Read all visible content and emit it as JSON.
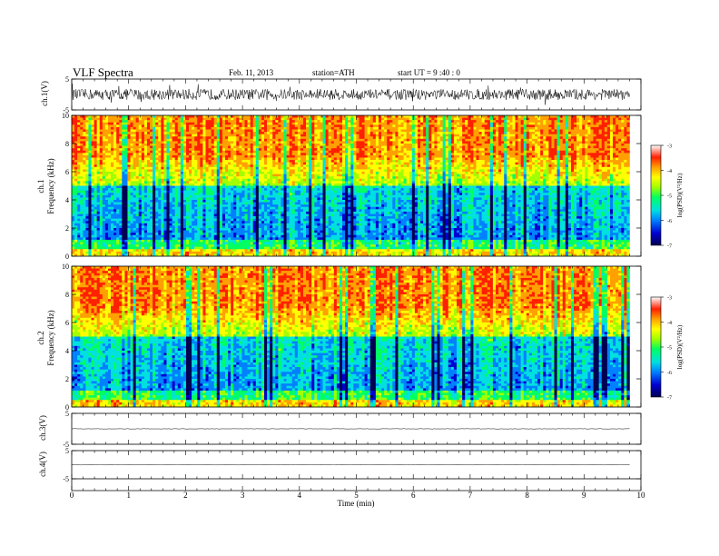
{
  "header": {
    "title": "VLF  Spectra",
    "date": "Feb. 11, 2013",
    "station": "station=ATH",
    "start_ut": "start  UT  =   9  :40 : 0"
  },
  "chart_data": [
    {
      "type": "line",
      "panel": "ch1-waveform",
      "ylabel": "ch.1(V)",
      "ylim": [
        -5,
        5
      ],
      "yticks": [
        "5",
        "-5"
      ],
      "x_range_min": [
        0,
        9.8
      ],
      "description_baseline": 0
    },
    {
      "type": "heatmap",
      "panel": "ch1-spectrogram",
      "ylabel_lines": [
        "ch.1",
        "Frequency  (kHz)"
      ],
      "ylim": [
        0,
        10
      ],
      "yticks": [
        "0",
        "2",
        "4",
        "6",
        "8",
        "10"
      ],
      "x_range_min": [
        0,
        9.8
      ],
      "colorbar": {
        "label": "log(PSD)(V²/Hz)",
        "range": [
          -7,
          -3
        ],
        "ticks": [
          "-3",
          "-4",
          "-5",
          "-6",
          "-7"
        ]
      }
    },
    {
      "type": "heatmap",
      "panel": "ch2-spectrogram",
      "ylabel_lines": [
        "ch.2",
        "Frequency  (kHz)"
      ],
      "ylim": [
        0,
        10
      ],
      "yticks": [
        "0",
        "2",
        "4",
        "6",
        "8",
        "10"
      ],
      "x_range_min": [
        0,
        9.8
      ],
      "colorbar": {
        "label": "log(PSD)(V²/Hz)",
        "range": [
          -7,
          -3
        ],
        "ticks": [
          "-3",
          "-4",
          "-5",
          "-6",
          "-7"
        ]
      }
    },
    {
      "type": "line",
      "panel": "ch3-waveform",
      "ylabel": "ch.3(V)",
      "ylim": [
        -5,
        5
      ],
      "yticks": [
        "5",
        "-5"
      ],
      "x_range_min": [
        0,
        9.8
      ]
    },
    {
      "type": "line",
      "panel": "ch4-waveform",
      "ylabel": "ch.4(V)",
      "ylim": [
        -5,
        5
      ],
      "yticks": [
        "5",
        "-5"
      ],
      "x_range_min": [
        0,
        9.8
      ]
    }
  ],
  "xaxis": {
    "label": "Time  (min)",
    "range": [
      0,
      10
    ],
    "ticks": [
      "0",
      "1",
      "2",
      "3",
      "4",
      "5",
      "6",
      "7",
      "8",
      "9",
      "10"
    ]
  },
  "colors": {
    "spectrogram_scale": [
      "#000050",
      "#0000d0",
      "#0080ff",
      "#00e0e0",
      "#00ff60",
      "#a0ff00",
      "#ffff00",
      "#ffa000",
      "#ff2000",
      "#ffffff"
    ]
  }
}
